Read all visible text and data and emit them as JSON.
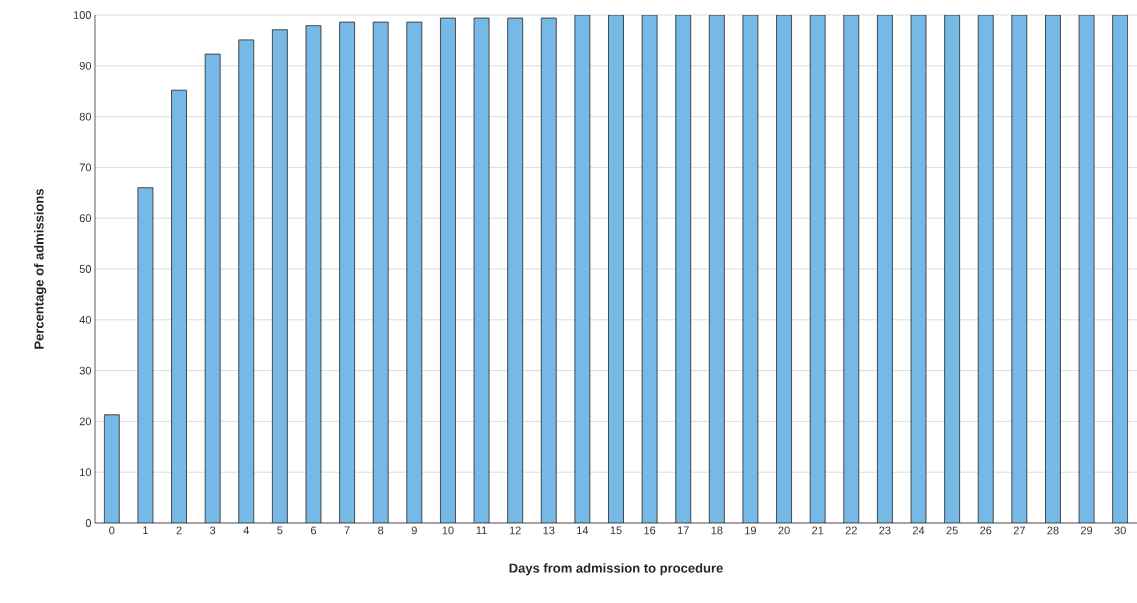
{
  "chart_data": {
    "type": "bar",
    "xlabel": "Days from admission to procedure",
    "ylabel": "Percentage of admissions",
    "categories": [
      "0",
      "1",
      "2",
      "3",
      "4",
      "5",
      "6",
      "7",
      "8",
      "9",
      "10",
      "11",
      "12",
      "13",
      "14",
      "15",
      "16",
      "17",
      "18",
      "19",
      "20",
      "21",
      "22",
      "23",
      "24",
      "25",
      "26",
      "27",
      "28",
      "29",
      "30"
    ],
    "values": [
      21.3,
      66,
      85.2,
      92.3,
      95.1,
      97.1,
      97.9,
      98.6,
      98.6,
      98.6,
      99.4,
      99.4,
      99.4,
      99.4,
      100,
      100,
      100,
      100,
      100,
      100,
      100,
      100,
      100,
      100,
      100,
      100,
      100,
      100,
      100,
      100,
      100
    ],
    "color": "#76b9e6",
    "ylim": [
      0,
      100
    ],
    "yticks": [
      0,
      10,
      20,
      30,
      40,
      50,
      60,
      70,
      80,
      90,
      100
    ],
    "grid": "y"
  }
}
